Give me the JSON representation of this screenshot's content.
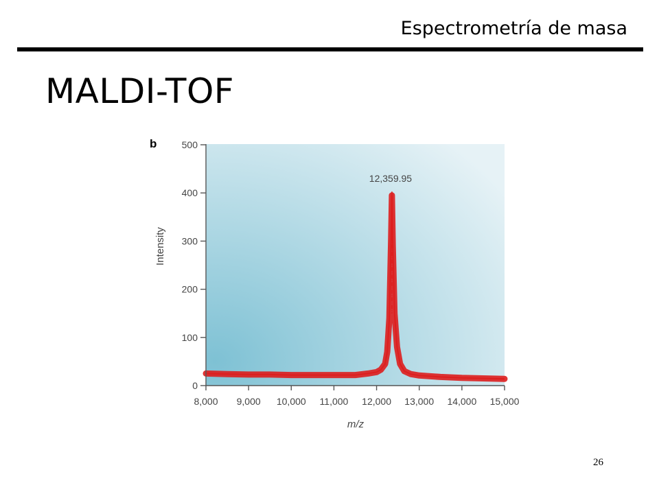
{
  "slide": {
    "section_title": "Espectrometría de masa",
    "title": "MALDI-TOF",
    "page_number": "26"
  },
  "chart_data": {
    "type": "line",
    "panel_label": "b",
    "title": "",
    "xlabel": "m/z",
    "ylabel": "Intensity",
    "xlim": [
      8000,
      15000
    ],
    "ylim": [
      0,
      500
    ],
    "x_ticks": [
      8000,
      9000,
      10000,
      11000,
      12000,
      13000,
      14000,
      15000
    ],
    "x_tick_labels": [
      "8,000",
      "9,000",
      "10,000",
      "11,000",
      "12,000",
      "13,000",
      "14,000",
      "15,000"
    ],
    "y_ticks": [
      0,
      100,
      200,
      300,
      400,
      500
    ],
    "y_tick_labels": [
      "0",
      "100",
      "200",
      "300",
      "400",
      "500"
    ],
    "grid": false,
    "series": [
      {
        "x": [
          8000,
          8500,
          9000,
          9500,
          10000,
          10500,
          11000,
          11500,
          11800,
          12000,
          12100,
          12200,
          12250,
          12300,
          12340,
          12360,
          12380,
          12420,
          12480,
          12550,
          12650,
          12800,
          13000,
          13500,
          14000,
          14500,
          15000
        ],
        "y": [
          25,
          24,
          23,
          23,
          22,
          22,
          22,
          22,
          25,
          28,
          33,
          45,
          70,
          140,
          300,
          395,
          290,
          150,
          80,
          45,
          30,
          24,
          21,
          18,
          16,
          15,
          14
        ]
      }
    ],
    "annotations": [
      {
        "text": "12,359.95",
        "x": 12359.95,
        "y": 400
      }
    ],
    "colors": {
      "series": "#dd1e1e",
      "plot_background_light": "#e6f2f6",
      "plot_background_dark": "#7ec1d4"
    }
  }
}
